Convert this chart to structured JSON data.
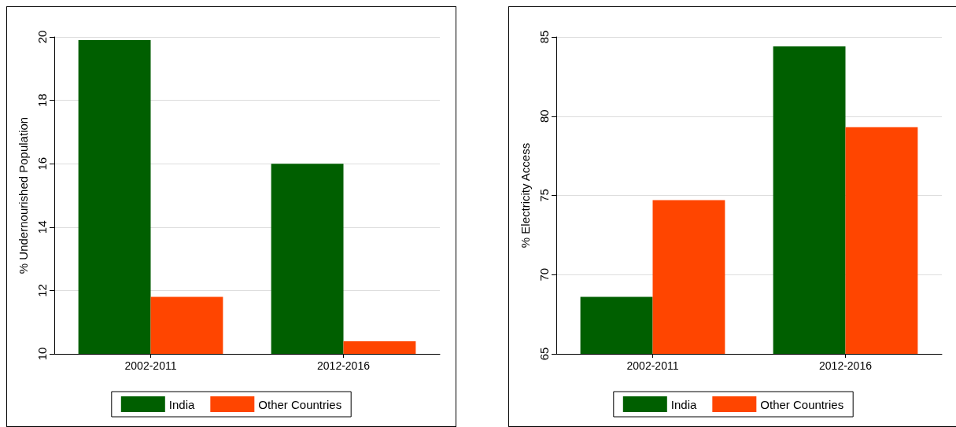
{
  "chart_data": [
    {
      "type": "bar",
      "ylabel": "% Undernourished Population",
      "categories": [
        "2002-2011",
        "2012-2016"
      ],
      "series": [
        {
          "name": "India",
          "color": "#005f00",
          "values": [
            19.9,
            16.0
          ]
        },
        {
          "name": "Other Countries",
          "color": "#ff4500",
          "values": [
            11.8,
            10.4
          ]
        }
      ],
      "ylim": [
        10,
        20
      ],
      "yticks": [
        10,
        12,
        14,
        16,
        18,
        20
      ],
      "grid": "y",
      "legend": "bottom"
    },
    {
      "type": "bar",
      "ylabel": "% Electricity Access",
      "categories": [
        "2002-2011",
        "2012-2016"
      ],
      "series": [
        {
          "name": "India",
          "color": "#005f00",
          "values": [
            68.6,
            84.4
          ]
        },
        {
          "name": "Other Countries",
          "color": "#ff4500",
          "values": [
            74.7,
            79.3
          ]
        }
      ],
      "ylim": [
        65,
        85
      ],
      "yticks": [
        65,
        70,
        75,
        80,
        85
      ],
      "grid": "y",
      "legend": "bottom"
    }
  ]
}
